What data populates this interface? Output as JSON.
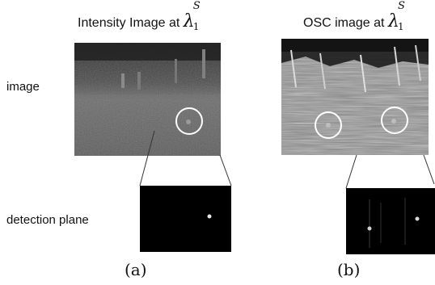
{
  "panel_a": {
    "title": "Intensity Image at",
    "symbol": "λ",
    "symbol_sup": "S",
    "symbol_sub": "1",
    "caption": "(a)"
  },
  "panel_b": {
    "title": "OSC image at",
    "symbol": "λ",
    "symbol_sup": "S",
    "symbol_sub": "1",
    "caption": "(b)"
  },
  "row_labels": {
    "image": "image",
    "detection": "detection plane"
  }
}
